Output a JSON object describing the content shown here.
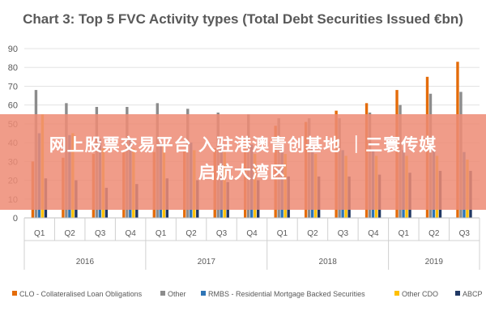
{
  "chart_data": {
    "type": "bar",
    "title": "Chart 3: Top 5 FVC Activity types (Total Debt Securities Issued €bn)",
    "ylim": [
      0,
      90
    ],
    "yticks": [
      0,
      10,
      20,
      30,
      40,
      50,
      60,
      70,
      80,
      90
    ],
    "grid": true,
    "legend_position": "bottom",
    "categories": [
      "Q1",
      "Q2",
      "Q3",
      "Q4",
      "Q1",
      "Q2",
      "Q3",
      "Q4",
      "Q1",
      "Q2",
      "Q3",
      "Q4",
      "Q1",
      "Q2",
      "Q3"
    ],
    "groups": [
      {
        "label": "2016",
        "count": 4
      },
      {
        "label": "2017",
        "count": 4
      },
      {
        "label": "2018",
        "count": 4
      },
      {
        "label": "2019",
        "count": 3
      }
    ],
    "series": [
      {
        "name": "CLO - Collateralised Loan Obligations",
        "color": "#E46C0A",
        "values": [
          30,
          32,
          34,
          35,
          35,
          36,
          37,
          42,
          49,
          51,
          57,
          61,
          68,
          75,
          83
        ]
      },
      {
        "name": "Other",
        "color": "#8C8C8C",
        "values": [
          68,
          61,
          59,
          59,
          61,
          58,
          56,
          55,
          53,
          53,
          53,
          56,
          60,
          66,
          67
        ]
      },
      {
        "name": "RMBS - Residential Mortgage Backed Securities",
        "color": "#2E75B6",
        "values": [
          45,
          44,
          42,
          42,
          40,
          40,
          39,
          39,
          38,
          38,
          36,
          36,
          36,
          36,
          35
        ]
      },
      {
        "name": "Other CDO",
        "color": "#FFC000",
        "values": [
          55,
          45,
          37,
          37,
          38,
          36,
          35,
          34,
          34,
          34,
          33,
          33,
          33,
          33,
          31
        ]
      },
      {
        "name": "ABCP",
        "color": "#203864",
        "values": [
          21,
          20,
          16,
          18,
          21,
          20,
          19,
          20,
          22,
          22,
          22,
          23,
          24,
          25,
          25
        ]
      }
    ]
  },
  "overlay": {
    "line1": "网上股票交易平台 入驻港澳青创基地 ｜三寰传媒",
    "line2": "启航大湾区"
  }
}
